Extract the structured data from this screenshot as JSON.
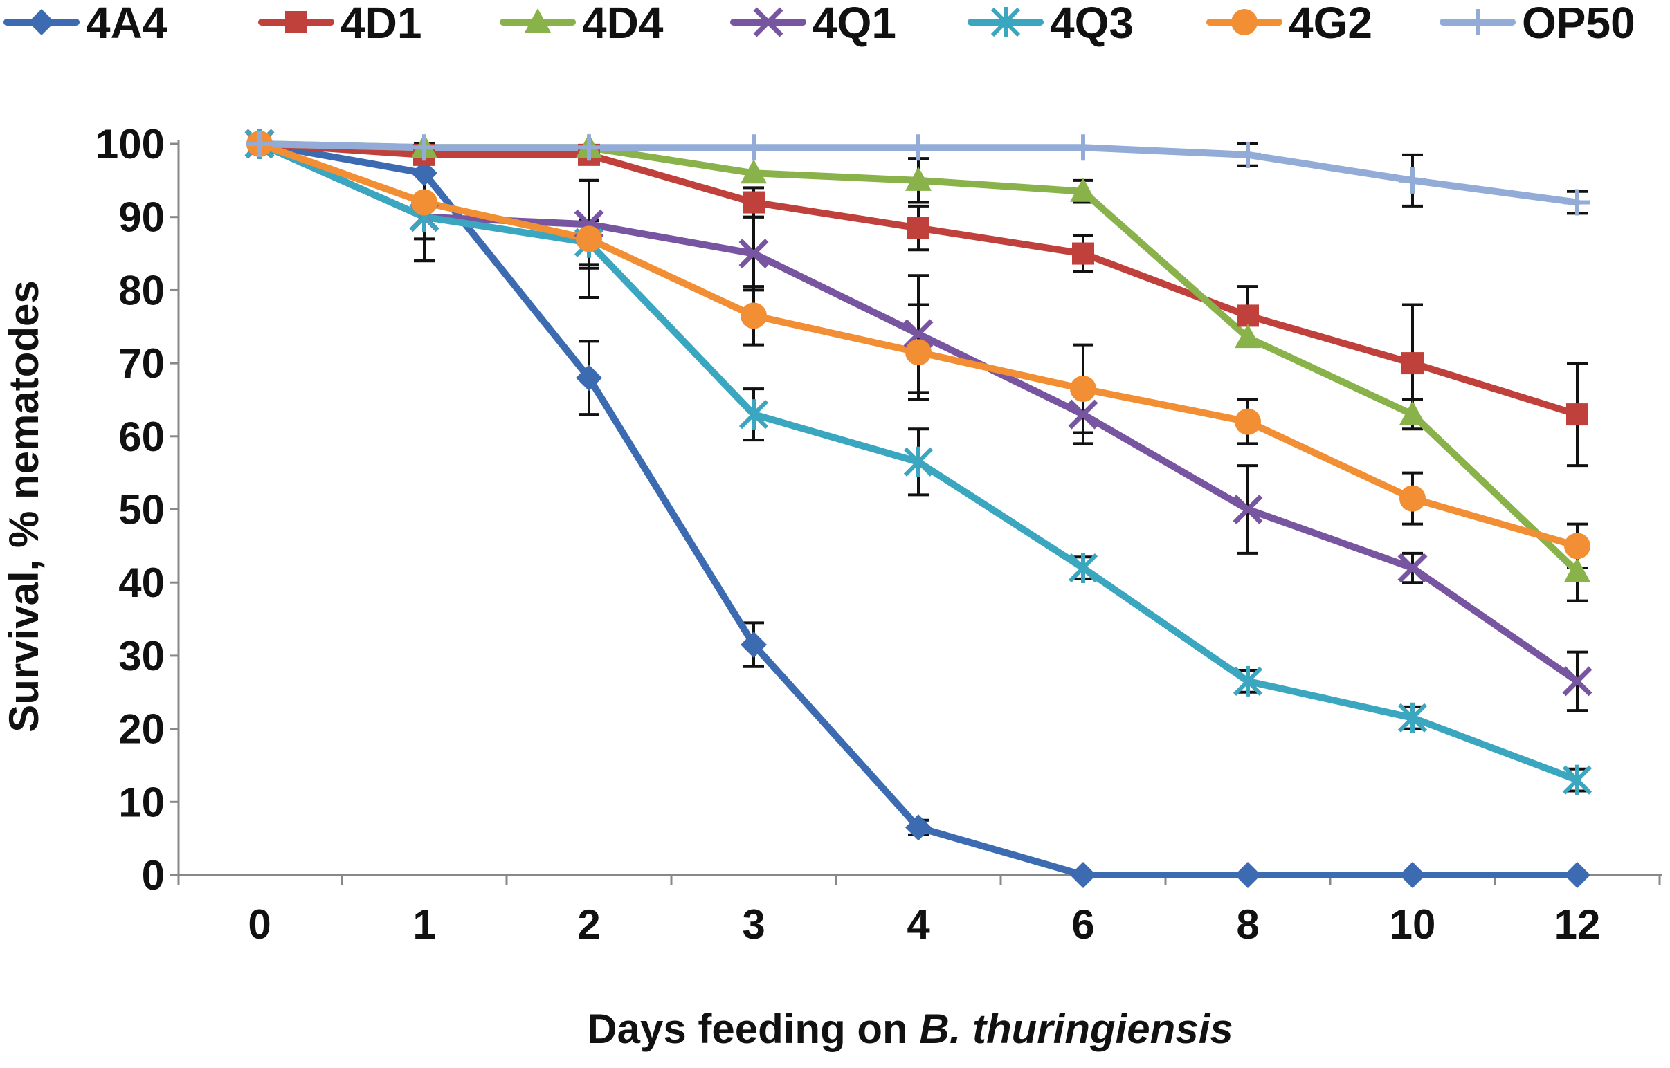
{
  "chart_data": {
    "type": "line",
    "title": "",
    "xlabel": "Days feeding on ",
    "xlabel_italic": "B. thuringiensis",
    "ylabel": "Survival, % nematodes",
    "categories": [
      "0",
      "1",
      "2",
      "3",
      "4",
      "6",
      "8",
      "10",
      "12"
    ],
    "ylim": [
      0,
      100
    ],
    "yticks": [
      0,
      10,
      20,
      30,
      40,
      50,
      60,
      70,
      80,
      90,
      100
    ],
    "legend_position": "top",
    "series": [
      {
        "name": "4A4",
        "color": "#3c6bb2",
        "marker": "diamond",
        "values": [
          100,
          96,
          68,
          31.5,
          6.5,
          0,
          0,
          0,
          0
        ],
        "errors": [
          0,
          0,
          5,
          3,
          1,
          0,
          0,
          0,
          0
        ]
      },
      {
        "name": "4D1",
        "color": "#c0413c",
        "marker": "square",
        "values": [
          100,
          98.5,
          98.5,
          92,
          88.5,
          85,
          76.5,
          70,
          63
        ],
        "errors": [
          0,
          0,
          0,
          2,
          3,
          2.5,
          4,
          8,
          7
        ]
      },
      {
        "name": "4D4",
        "color": "#8ab24a",
        "marker": "triangle",
        "values": [
          100,
          99.5,
          99.5,
          96,
          95,
          93.5,
          73.5,
          63,
          41.5
        ],
        "errors": [
          0,
          0,
          0,
          0,
          3,
          1.5,
          0,
          2,
          4
        ]
      },
      {
        "name": "4Q1",
        "color": "#7855a0",
        "marker": "x",
        "values": [
          100,
          90,
          89,
          85,
          74,
          63,
          50,
          42,
          26.5
        ],
        "errors": [
          0,
          6,
          6,
          5,
          8,
          4,
          6,
          2,
          4
        ]
      },
      {
        "name": "4Q3",
        "color": "#3ba6c0",
        "marker": "asterisk",
        "values": [
          100,
          90,
          86.5,
          63,
          56.5,
          42,
          26.5,
          21.5,
          13
        ],
        "errors": [
          0,
          3,
          3,
          3.5,
          4.5,
          1.5,
          1.5,
          1.5,
          1.5
        ]
      },
      {
        "name": "4G2",
        "color": "#f28f35",
        "marker": "circle",
        "values": [
          100,
          92,
          87,
          76.5,
          71.5,
          66.5,
          62,
          51.5,
          45
        ],
        "errors": [
          0,
          8,
          8,
          4,
          6.5,
          6,
          3,
          3.5,
          3
        ]
      },
      {
        "name": "OP50",
        "color": "#93acd7",
        "marker": "plus",
        "values": [
          100,
          99.5,
          99.5,
          99.5,
          99.5,
          99.5,
          98.5,
          95,
          92
        ],
        "errors": [
          0,
          0,
          0,
          0,
          0,
          0,
          1.5,
          3.5,
          1.5
        ]
      }
    ]
  }
}
